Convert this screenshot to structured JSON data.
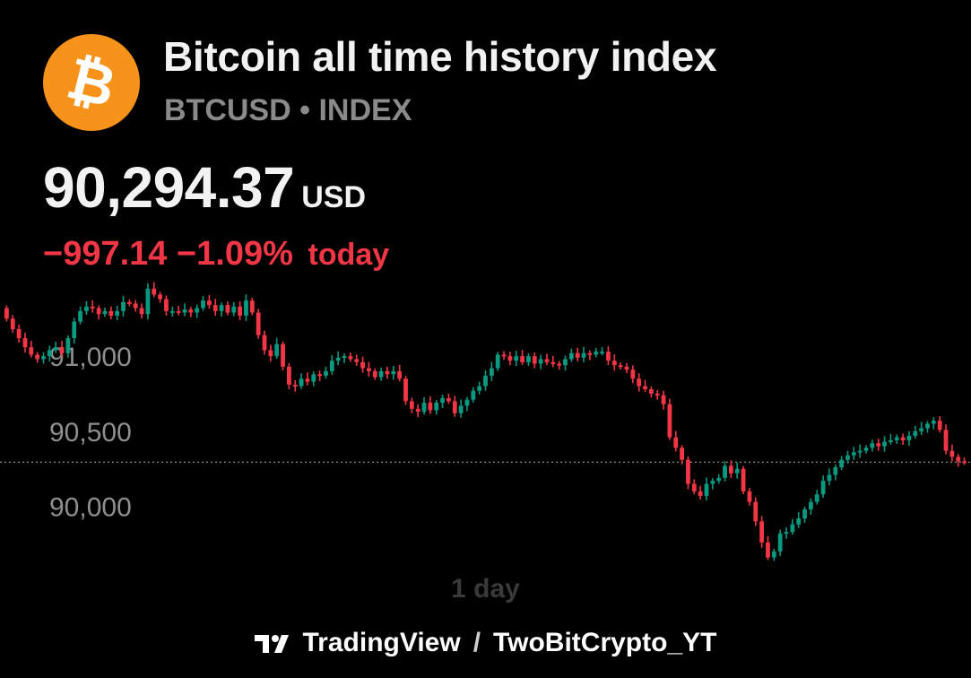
{
  "header": {
    "title": "Bitcoin all time history index",
    "subtitle": "BTCUSD • INDEX",
    "logo_icon": "bitcoin-icon",
    "logo_color": "#F7931A",
    "logo_glyph": "₿"
  },
  "quote": {
    "price": "90,294.37",
    "currency": "USD",
    "change": "−997.14",
    "change_pct": "−1.09%",
    "change_suffix": "today",
    "down_color": "#F23645"
  },
  "footer": {
    "brand": "TradingView",
    "separator": "/",
    "author": "TwoBitCrypto_YT",
    "brand_icon": "tradingview-icon"
  },
  "chart_data": {
    "type": "candlestick",
    "interval_label": "1 day",
    "y_ticks": [
      {
        "value": 91000,
        "label": "91,000"
      },
      {
        "value": 90500,
        "label": "90,500"
      },
      {
        "value": 90000,
        "label": "90,000"
      }
    ],
    "ylim": [
      89550,
      91580
    ],
    "last_price_line": 90294.37,
    "up_color": "#089981",
    "down_color": "#F23645",
    "close": [
      91250,
      91180,
      91120,
      91060,
      91010,
      90980,
      91000,
      91040,
      91060,
      91020,
      91120,
      91230,
      91300,
      91330,
      91320,
      91280,
      91300,
      91270,
      91300,
      91360,
      91350,
      91320,
      91280,
      91450,
      91410,
      91380,
      91300,
      91300,
      91290,
      91310,
      91290,
      91320,
      91370,
      91340,
      91300,
      91340,
      91290,
      91330,
      91270,
      91370,
      91290,
      91140,
      91040,
      91000,
      91080,
      90930,
      90810,
      90800,
      90850,
      90830,
      90880,
      90870,
      90900,
      90970,
      90990,
      91000,
      90980,
      90960,
      90920,
      90900,
      90860,
      90900,
      90880,
      90900,
      90850,
      90700,
      90650,
      90630,
      90690,
      90640,
      90690,
      90720,
      90700,
      90620,
      90670,
      90710,
      90770,
      90800,
      90870,
      90920,
      91010,
      91000,
      90970,
      91000,
      90960,
      91000,
      90950,
      90980,
      90960,
      90950,
      90940,
      90980,
      91020,
      90990,
      91020,
      91010,
      91030,
      91030,
      90970,
      90940,
      90930,
      90910,
      90850,
      90800,
      90780,
      90750,
      90740,
      90680,
      90460,
      90390,
      90310,
      90150,
      90100,
      90070,
      90150,
      90170,
      90190,
      90270,
      90220,
      90250,
      90100,
      90030,
      89900,
      89760,
      89660,
      89700,
      89820,
      89830,
      89880,
      89920,
      89980,
      90030,
      90080,
      90170,
      90210,
      90260,
      90310,
      90340,
      90360,
      90370,
      90390,
      90420,
      90400,
      90430,
      90440,
      90460,
      90440,
      90470,
      90500,
      90520,
      90550,
      90570,
      90510,
      90370,
      90330,
      90300,
      90294
    ],
    "open_first": 91320
  }
}
